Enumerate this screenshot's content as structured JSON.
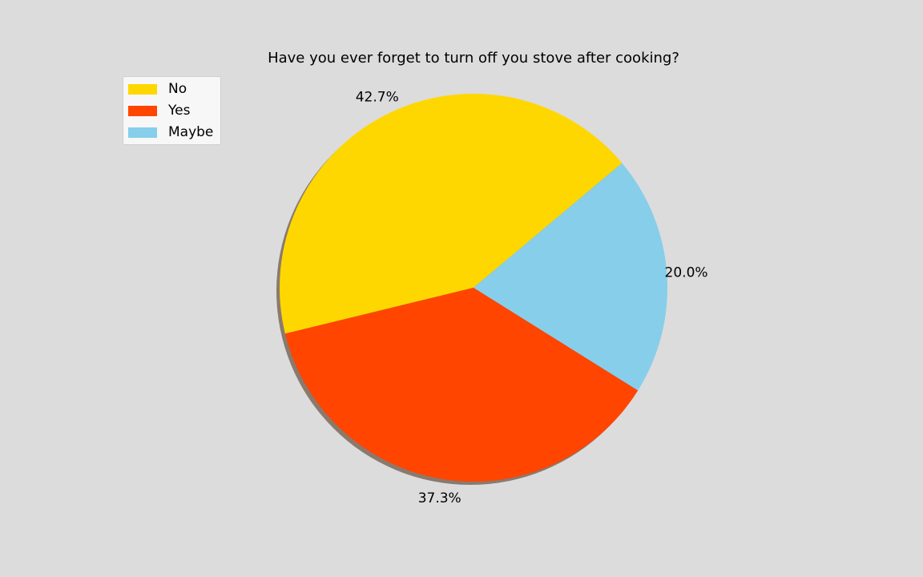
{
  "chart_data": {
    "type": "pie",
    "title": "Have you ever forget to turn off you stove after cooking?",
    "slices": [
      {
        "label": "No",
        "value": 42.7,
        "pct_label": "42.7%",
        "color": "#FFD700"
      },
      {
        "label": "Yes",
        "value": 37.3,
        "pct_label": "37.3%",
        "color": "#FF4500"
      },
      {
        "label": "Maybe",
        "value": 20.0,
        "pct_label": "20.0%",
        "color": "#87CEEB"
      }
    ],
    "shadow": true,
    "legend_position": "upper-left"
  }
}
